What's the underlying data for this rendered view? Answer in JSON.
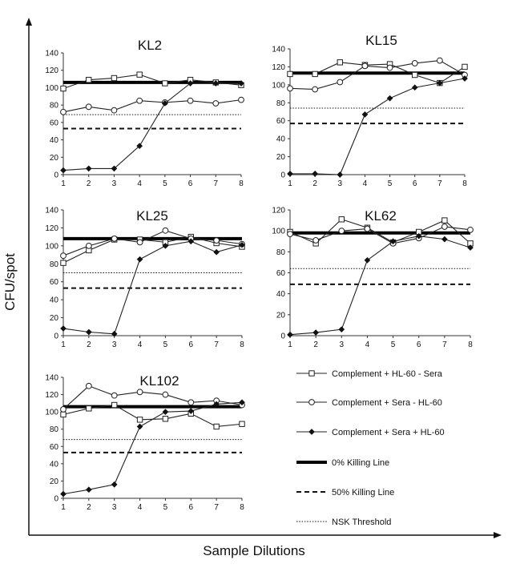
{
  "figure": {
    "ylabel": "CFU/spot",
    "xlabel": "Sample Dilutions"
  },
  "legend": {
    "items": [
      {
        "label": "Complement + HL-60 - Sera",
        "style": "square"
      },
      {
        "label": "Complement + Sera - HL-60",
        "style": "circle"
      },
      {
        "label": "Complement + Sera + HL-60",
        "style": "diamond"
      },
      {
        "label": "0% Killing Line",
        "style": "thick"
      },
      {
        "label": "50% Killing Line",
        "style": "dashed"
      },
      {
        "label": "NSK Threshold",
        "style": "dotted"
      }
    ]
  },
  "chart_data": [
    {
      "type": "line",
      "title": "KL2",
      "x": [
        1,
        2,
        3,
        4,
        5,
        6,
        7,
        8
      ],
      "ylim": [
        0,
        140
      ],
      "yticks": [
        0,
        20,
        40,
        60,
        80,
        100,
        120,
        140
      ],
      "series": [
        {
          "name": "Complement + HL-60 - Sera",
          "values": [
            99,
            109,
            111,
            115,
            105,
            109,
            106,
            103
          ]
        },
        {
          "name": "Complement + Sera - HL-60",
          "values": [
            72,
            78,
            74,
            85,
            83,
            85,
            82,
            86
          ]
        },
        {
          "name": "Complement + Sera + HL-60",
          "values": [
            5,
            7,
            7,
            33,
            82,
            105,
            105,
            105
          ]
        }
      ],
      "killing_line_0": 106,
      "killing_line_50": 53,
      "nsk_threshold": 69
    },
    {
      "type": "line",
      "title": "KL15",
      "x": [
        1,
        2,
        3,
        4,
        5,
        6,
        7,
        8
      ],
      "ylim": [
        0,
        140
      ],
      "yticks": [
        0,
        20,
        40,
        60,
        80,
        100,
        120,
        140
      ],
      "series": [
        {
          "name": "Complement + HL-60 - Sera",
          "values": [
            112,
            112,
            125,
            122,
            123,
            111,
            102,
            120
          ]
        },
        {
          "name": "Complement + Sera - HL-60",
          "values": [
            96,
            95,
            103,
            121,
            119,
            124,
            127,
            111
          ]
        },
        {
          "name": "Complement + Sera + HL-60",
          "values": [
            1,
            1,
            0,
            67,
            85,
            97,
            102,
            107
          ]
        }
      ],
      "killing_line_0": 113,
      "killing_line_50": 57,
      "nsk_threshold": 74
    },
    {
      "type": "line",
      "title": "KL25",
      "x": [
        1,
        2,
        3,
        4,
        5,
        6,
        7,
        8
      ],
      "ylim": [
        0,
        140
      ],
      "yticks": [
        0,
        20,
        40,
        60,
        80,
        100,
        120,
        140
      ],
      "series": [
        {
          "name": "Complement + HL-60 - Sera",
          "values": [
            81,
            95,
            107,
            107,
            104,
            110,
            103,
            99
          ]
        },
        {
          "name": "Complement + Sera - HL-60",
          "values": [
            89,
            100,
            108,
            104,
            117,
            108,
            106,
            102
          ]
        },
        {
          "name": "Complement + Sera + HL-60",
          "values": [
            8,
            4,
            2,
            85,
            100,
            105,
            93,
            101
          ]
        }
      ],
      "killing_line_0": 108,
      "killing_line_50": 53,
      "nsk_threshold": 70
    },
    {
      "type": "line",
      "title": "KL62",
      "x": [
        1,
        2,
        3,
        4,
        5,
        6,
        7,
        8
      ],
      "ylim": [
        0,
        120
      ],
      "yticks": [
        0,
        20,
        40,
        60,
        80,
        100,
        120
      ],
      "series": [
        {
          "name": "Complement + HL-60 - Sera",
          "values": [
            99,
            88,
            111,
            103,
            89,
            99,
            110,
            88
          ]
        },
        {
          "name": "Complement + Sera - HL-60",
          "values": [
            97,
            91,
            100,
            102,
            88,
            93,
            104,
            101
          ]
        },
        {
          "name": "Complement + Sera + HL-60",
          "values": [
            1,
            3,
            6,
            72,
            90,
            95,
            92,
            84
          ]
        }
      ],
      "killing_line_0": 98,
      "killing_line_50": 49,
      "nsk_threshold": 64
    },
    {
      "type": "line",
      "title": "KL102",
      "x": [
        1,
        2,
        3,
        4,
        5,
        6,
        7,
        8
      ],
      "ylim": [
        0,
        140
      ],
      "yticks": [
        0,
        20,
        40,
        60,
        80,
        100,
        120,
        140
      ],
      "series": [
        {
          "name": "Complement + HL-60 - Sera",
          "values": [
            97,
            104,
            108,
            91,
            92,
            98,
            83,
            86
          ]
        },
        {
          "name": "Complement + Sera - HL-60",
          "values": [
            103,
            130,
            119,
            123,
            120,
            111,
            113,
            108
          ]
        },
        {
          "name": "Complement + Sera + HL-60",
          "values": [
            5,
            10,
            16,
            83,
            100,
            101,
            109,
            111
          ]
        }
      ],
      "killing_line_0": 106,
      "killing_line_50": 53,
      "nsk_threshold": 68
    }
  ]
}
